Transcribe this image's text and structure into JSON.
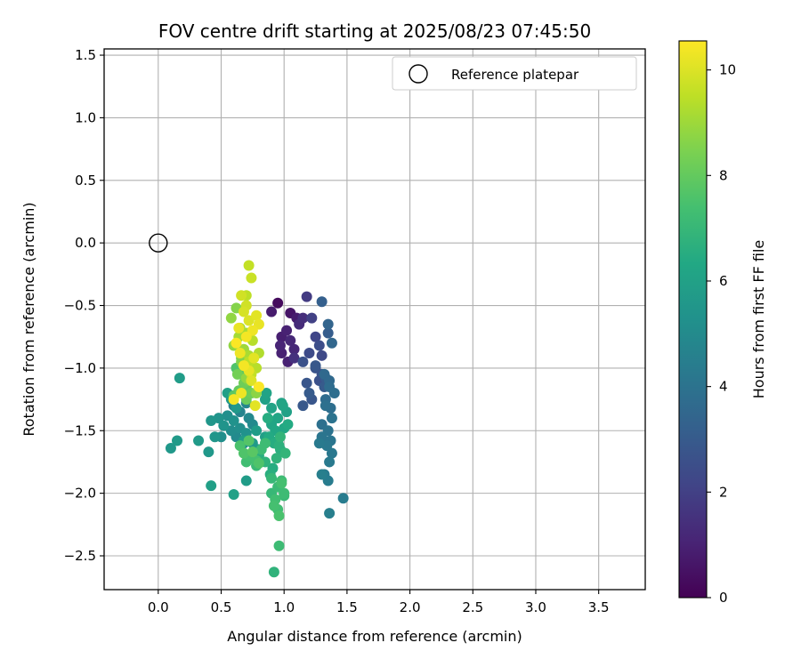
{
  "chart_data": {
    "type": "scatter",
    "title": "FOV centre drift starting at 2025/08/23 07:45:50",
    "xlabel": "Angular distance from reference (arcmin)",
    "ylabel": "Rotation from reference (arcmin)",
    "xlim": [
      -0.43,
      3.87
    ],
    "ylim": [
      -2.77,
      1.55
    ],
    "x_ticks": [
      "0.0",
      "0.5",
      "1.0",
      "1.5",
      "2.0",
      "2.5",
      "3.0",
      "3.5"
    ],
    "y_ticks": [
      "1.5",
      "1.0",
      "0.5",
      "0.0",
      "−0.5",
      "−1.0",
      "−1.5",
      "−2.0",
      "−2.5"
    ],
    "grid": true,
    "legend": {
      "position": "top-right",
      "entries": [
        "Reference platepar"
      ]
    },
    "reference_point": {
      "x": 0.0,
      "y": 0.0
    },
    "colorbar": {
      "label": "Hours from first FF file",
      "colormap": "viridis",
      "range": [
        0,
        10.55
      ],
      "ticks": [
        "0",
        "2",
        "4",
        "6",
        "8",
        "10"
      ]
    },
    "series": [
      {
        "x": [
          0.95,
          1.05,
          1.1,
          0.98,
          1.02,
          0.97,
          1.08,
          1.12,
          1.03,
          1.15,
          0.9,
          0.98,
          1.05,
          1.08,
          1.18,
          1.22,
          1.25,
          1.2,
          1.28,
          1.15,
          1.3,
          1.18,
          1.25,
          1.32,
          1.2,
          1.28,
          1.22,
          1.15,
          1.35,
          1.3,
          1.25,
          1.33,
          1.3,
          1.35,
          1.38,
          1.32,
          1.36,
          1.4,
          1.33,
          1.38,
          1.35,
          1.3,
          1.37,
          1.34,
          1.38,
          1.36,
          1.32,
          1.35,
          1.3,
          1.37,
          1.33,
          1.36,
          1.47,
          1.36,
          1.3,
          1.28,
          0.6,
          0.65,
          0.7,
          0.72,
          0.75,
          0.62,
          0.68,
          0.58,
          0.55,
          0.65,
          0.7,
          0.6,
          0.48,
          0.52,
          0.45,
          0.42,
          0.58,
          0.62,
          0.75,
          0.8,
          0.78,
          0.68,
          0.72,
          0.85,
          0.1,
          0.15,
          0.17,
          0.32,
          0.4,
          0.42,
          0.5,
          0.55,
          0.6,
          0.7,
          0.85,
          0.9,
          0.95,
          1.0,
          0.88,
          0.92,
          0.97,
          1.02,
          0.9,
          0.95,
          0.8,
          0.85,
          0.93,
          0.98,
          0.87,
          0.96,
          1.01,
          0.91,
          0.94,
          0.89,
          0.99,
          1.03,
          0.86,
          0.97,
          0.9,
          0.95,
          1.0,
          0.93,
          0.98,
          0.92,
          0.96,
          1.0,
          0.95,
          0.9,
          0.96,
          0.92,
          0.98,
          0.75,
          0.78,
          0.82,
          0.7,
          0.72,
          0.65,
          0.68,
          0.72,
          0.78,
          0.85,
          0.8,
          0.75,
          0.62,
          0.67,
          0.7,
          0.74,
          0.72,
          0.66,
          0.7,
          0.64,
          0.6,
          0.68,
          0.74,
          0.7,
          0.63,
          0.66,
          0.78,
          0.62,
          0.58,
          0.65,
          0.7,
          0.75,
          0.68,
          0.72,
          0.6,
          0.64,
          0.8,
          0.72,
          0.78,
          0.74,
          0.7,
          0.72,
          0.74,
          0.66,
          0.68,
          0.72,
          0.78,
          0.8,
          0.75,
          0.7,
          0.62,
          0.65,
          0.76,
          0.68,
          0.72,
          0.74,
          0.8,
          0.66,
          0.6,
          0.77,
          0.7,
          0.64
        ],
        "y": [
          -0.48,
          -0.56,
          -0.6,
          -0.75,
          -0.7,
          -0.82,
          -0.85,
          -0.65,
          -0.95,
          -0.6,
          -0.55,
          -0.88,
          -0.78,
          -0.92,
          -0.43,
          -0.6,
          -0.75,
          -0.88,
          -0.82,
          -0.95,
          -1.05,
          -1.12,
          -0.98,
          -1.15,
          -1.2,
          -1.1,
          -1.25,
          -1.3,
          -0.72,
          -0.9,
          -1.0,
          -1.08,
          -0.47,
          -0.65,
          -0.8,
          -1.05,
          -1.15,
          -1.2,
          -1.3,
          -1.4,
          -1.5,
          -1.55,
          -1.58,
          -1.62,
          -1.68,
          -1.75,
          -1.85,
          -1.9,
          -1.45,
          -1.32,
          -1.25,
          -1.1,
          -2.04,
          -2.16,
          -1.85,
          -1.6,
          -1.3,
          -1.35,
          -1.28,
          -1.4,
          -1.45,
          -1.55,
          -1.6,
          -1.5,
          -1.38,
          -1.48,
          -1.52,
          -1.42,
          -1.4,
          -1.46,
          -1.55,
          -1.42,
          -1.25,
          -1.32,
          -1.6,
          -1.65,
          -1.5,
          -1.58,
          -1.7,
          -1.55,
          -1.64,
          -1.58,
          -1.08,
          -1.58,
          -1.67,
          -1.94,
          -1.55,
          -1.2,
          -2.01,
          -1.9,
          -1.25,
          -1.32,
          -1.4,
          -1.48,
          -1.55,
          -1.6,
          -1.65,
          -1.35,
          -1.45,
          -1.58,
          -1.7,
          -1.75,
          -1.5,
          -1.28,
          -1.4,
          -1.62,
          -1.68,
          -1.8,
          -1.72,
          -1.85,
          -1.3,
          -1.45,
          -1.2,
          -1.55,
          -1.88,
          -1.95,
          -2.0,
          -2.05,
          -1.9,
          -2.1,
          -2.18,
          -2.02,
          -2.13,
          -2.0,
          -2.42,
          -2.63,
          -1.92,
          -1.72,
          -1.78,
          -1.65,
          -1.75,
          -1.7,
          -1.62,
          -1.68,
          -1.58,
          -1.74,
          -1.6,
          -1.76,
          -1.67,
          -1.0,
          -1.05,
          -1.15,
          -1.2,
          -1.1,
          -0.95,
          -1.08,
          -1.18,
          -1.22,
          -1.12,
          -1.02,
          -1.25,
          -1.05,
          -0.92,
          -1.2,
          -0.52,
          -0.6,
          -0.68,
          -0.72,
          -0.78,
          -0.85,
          -0.9,
          -0.82,
          -0.75,
          -0.88,
          -0.95,
          -1.0,
          -1.05,
          -0.42,
          -0.18,
          -0.28,
          -0.42,
          -0.55,
          -0.62,
          -0.58,
          -0.65,
          -0.7,
          -0.75,
          -0.8,
          -0.88,
          -0.92,
          -0.98,
          -1.02,
          -1.1,
          -1.15,
          -1.2,
          -1.25,
          -1.3,
          -0.5,
          -0.68
        ],
        "color_hours": [
          0.3,
          0.6,
          0.8,
          0.9,
          1.0,
          1.1,
          1.2,
          1.3,
          1.0,
          1.4,
          0.8,
          1.0,
          1.2,
          1.5,
          1.8,
          2.0,
          2.2,
          2.4,
          2.5,
          2.6,
          2.7,
          2.8,
          2.9,
          3.0,
          3.0,
          2.6,
          2.8,
          2.9,
          3.1,
          2.3,
          2.7,
          3.0,
          3.2,
          3.4,
          3.5,
          3.6,
          3.7,
          3.8,
          3.9,
          4.0,
          4.0,
          4.1,
          4.1,
          4.2,
          4.2,
          4.3,
          4.3,
          4.4,
          3.9,
          3.8,
          3.7,
          3.6,
          4.4,
          4.5,
          4.5,
          4.3,
          4.6,
          4.7,
          4.8,
          4.9,
          5.0,
          5.0,
          5.1,
          5.1,
          5.2,
          5.2,
          5.3,
          5.3,
          5.4,
          5.4,
          5.5,
          5.5,
          5.6,
          5.6,
          5.7,
          5.7,
          5.8,
          5.8,
          5.9,
          5.9,
          5.6,
          5.7,
          5.8,
          5.7,
          5.6,
          5.9,
          5.2,
          5.9,
          6.0,
          5.8,
          6.0,
          6.1,
          6.2,
          6.3,
          6.4,
          6.5,
          6.6,
          6.0,
          6.2,
          6.4,
          6.6,
          6.8,
          6.3,
          6.1,
          6.5,
          6.7,
          6.9,
          6.5,
          6.8,
          6.6,
          6.2,
          6.4,
          6.1,
          6.9,
          7.0,
          7.1,
          7.2,
          7.3,
          7.2,
          7.4,
          7.5,
          7.1,
          7.3,
          7.0,
          7.2,
          6.8,
          7.4,
          7.0,
          7.1,
          7.2,
          7.3,
          7.4,
          7.5,
          7.6,
          7.7,
          7.4,
          7.2,
          7.6,
          7.8,
          7.6,
          7.8,
          8.0,
          8.2,
          8.4,
          8.6,
          8.8,
          8.0,
          7.8,
          8.2,
          7.9,
          8.1,
          8.3,
          8.5,
          8.7,
          8.6,
          8.8,
          9.0,
          9.2,
          9.4,
          9.0,
          9.2,
          8.8,
          9.1,
          9.3,
          9.5,
          9.4,
          9.6,
          9.5,
          9.6,
          9.7,
          9.8,
          9.9,
          10.0,
          10.1,
          10.2,
          10.3,
          10.4,
          10.5,
          10.3,
          10.1,
          10.4,
          10.2,
          10.0,
          10.5,
          10.3,
          10.4,
          10.1,
          9.8,
          10.2
        ]
      }
    ]
  }
}
